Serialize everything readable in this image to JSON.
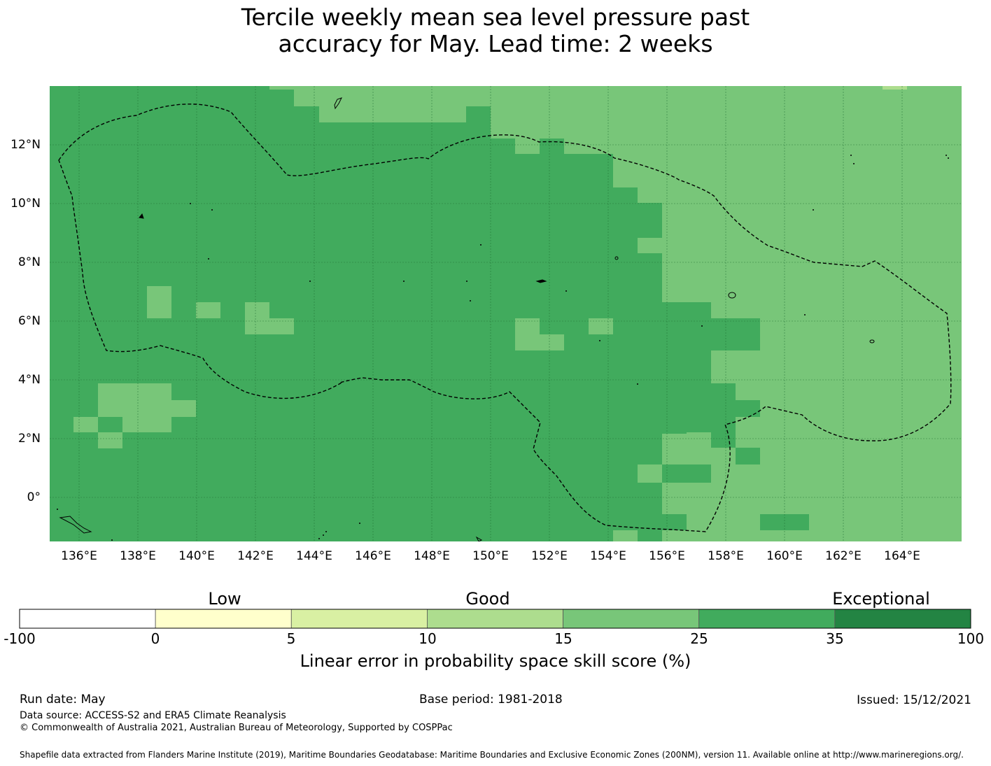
{
  "title": {
    "line1": "Tercile weekly mean sea level pressure past",
    "line2": "accuracy for May. Lead time: 2 weeks"
  },
  "map": {
    "x_ticks": [
      "136°E",
      "138°E",
      "140°E",
      "142°E",
      "144°E",
      "146°E",
      "148°E",
      "150°E",
      "152°E",
      "154°E",
      "156°E",
      "158°E",
      "160°E",
      "162°E",
      "164°E"
    ],
    "y_ticks": [
      "12°N",
      "10°N",
      "8°N",
      "6°N",
      "4°N",
      "2°N",
      "0°"
    ],
    "grid": true,
    "dominant_category_west": "25 to 35",
    "dominant_category_east": "15 to 25"
  },
  "colorbar": {
    "category_labels": [
      "Low",
      "Good",
      "Exceptional"
    ],
    "tick_labels": [
      "-100",
      "0",
      "5",
      "10",
      "15",
      "25",
      "35",
      "100"
    ],
    "colors": [
      "#ffffff",
      "#ffffcc",
      "#d9f0a3",
      "#addd8e",
      "#78c679",
      "#41ab5d",
      "#238443"
    ],
    "label": "Linear error in probability space skill score (%)"
  },
  "footer": {
    "run_date": "Run date: May",
    "base_period": "Base period: 1981-2018",
    "issued": "Issued: 15/12/2021",
    "data_source": "Data source: ACCESS-S2 and ERA5 Climate Reanalysis",
    "copyright": "© Commonwealth of Australia 2021, Australian Bureau of Meteorology, Supported by COSPPac",
    "shapefile": "Shapefile data extracted from Flanders Marine Institute (2019), Maritime Boundaries Geodatabase: Maritime Boundaries and Exclusive Economic Zones (200NM), version 11. Available online at http://www.marineregions.org/."
  }
}
